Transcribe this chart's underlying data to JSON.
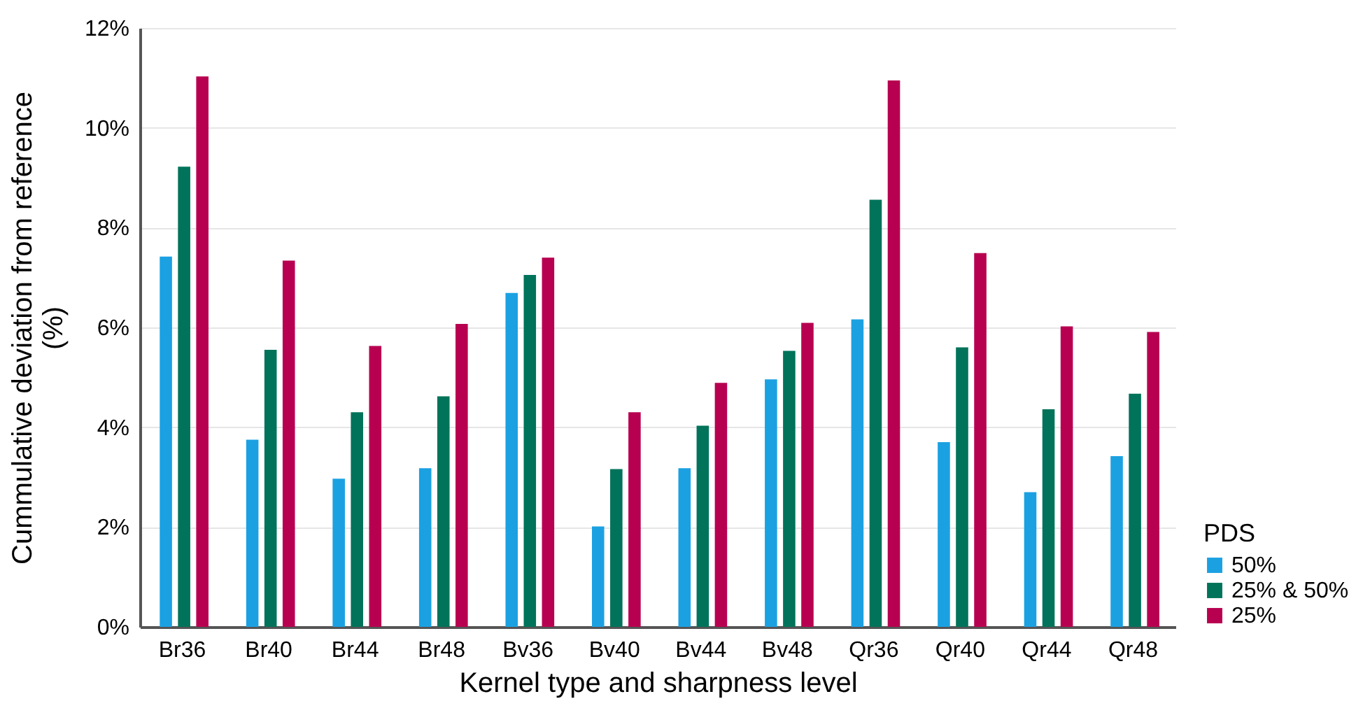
{
  "chart_data": {
    "type": "bar",
    "xlabel": "Kernel type and sharpness level",
    "ylabel": "Cummulative deviation from reference (%)",
    "legend_title": "PDS",
    "categories": [
      "Br36",
      "Br40",
      "Br44",
      "Br48",
      "Bv36",
      "Bv40",
      "Bv44",
      "Bv48",
      "Qr36",
      "Qr40",
      "Qr44",
      "Qr48"
    ],
    "series": [
      {
        "name": "50%",
        "color": "#1ba1e2",
        "values": [
          7.42,
          3.75,
          2.97,
          3.18,
          6.69,
          2.01,
          3.18,
          4.96,
          6.16,
          3.7,
          2.7,
          3.42
        ]
      },
      {
        "name": "25% & 50%",
        "color": "#00735a",
        "values": [
          9.22,
          5.55,
          4.3,
          4.62,
          7.05,
          3.16,
          4.03,
          5.53,
          8.56,
          5.6,
          4.36,
          4.67
        ]
      },
      {
        "name": "25%",
        "color": "#b80050",
        "values": [
          11.03,
          7.34,
          5.63,
          6.07,
          7.4,
          4.3,
          4.89,
          6.09,
          10.95,
          7.49,
          6.02,
          5.91
        ]
      }
    ],
    "ylim": [
      0,
      12
    ],
    "yticks": [
      {
        "value": 0,
        "label": "0%"
      },
      {
        "value": 2,
        "label": "2%"
      },
      {
        "value": 4,
        "label": "4%"
      },
      {
        "value": 6,
        "label": "6%"
      },
      {
        "value": 8,
        "label": "8%"
      },
      {
        "value": 10,
        "label": "10%"
      },
      {
        "value": 12,
        "label": "12%"
      }
    ],
    "grid": "y",
    "legend": "right"
  }
}
